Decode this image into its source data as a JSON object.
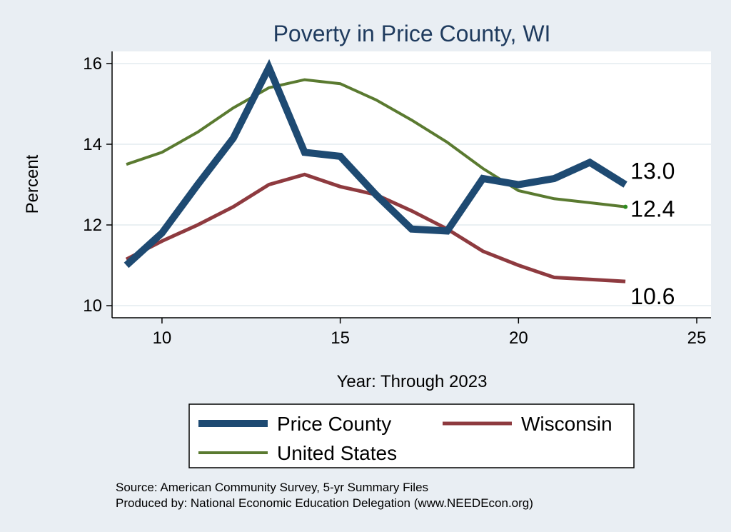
{
  "chart_data": {
    "type": "line",
    "title": "Poverty in Price County, WI",
    "xlabel": "Year: Through 2023",
    "ylabel": "Percent",
    "xlim": [
      8.6,
      25.4
    ],
    "ylim": [
      9.7,
      16.3
    ],
    "xticks": [
      10,
      15,
      20,
      25
    ],
    "yticks": [
      10,
      12,
      14,
      16
    ],
    "grid": true,
    "legend_position": "bottom",
    "series": [
      {
        "name": "Price County",
        "color": "#1e4a72",
        "width": "thick",
        "x": [
          9,
          10,
          11,
          12,
          13,
          14,
          15,
          16,
          17,
          18,
          19,
          20,
          21,
          22,
          23
        ],
        "y": [
          11.0,
          11.8,
          13.0,
          14.15,
          15.9,
          13.8,
          13.7,
          12.75,
          11.9,
          11.85,
          13.15,
          13.0,
          13.15,
          13.55,
          13.0
        ],
        "end_label": "13.0"
      },
      {
        "name": "Wisconsin",
        "color": "#8e3a3f",
        "width": "medium",
        "x": [
          9,
          10,
          11,
          12,
          13,
          14,
          15,
          16,
          17,
          18,
          19,
          20,
          21,
          22,
          23
        ],
        "y": [
          11.15,
          11.6,
          12.0,
          12.45,
          13.0,
          13.25,
          12.95,
          12.75,
          12.35,
          11.9,
          11.35,
          11.0,
          10.7,
          10.65,
          10.6
        ],
        "end_label": "10.6"
      },
      {
        "name": "United States",
        "color": "#5a7a30",
        "width": "thin",
        "x": [
          9,
          10,
          11,
          12,
          13,
          14,
          15,
          16,
          17,
          18,
          19,
          20,
          21,
          22,
          23
        ],
        "y": [
          13.5,
          13.8,
          14.3,
          14.9,
          15.4,
          15.6,
          15.5,
          15.1,
          14.6,
          14.05,
          13.4,
          12.85,
          12.65,
          12.55,
          12.45
        ],
        "end_label": "12.4"
      }
    ],
    "notes": [
      "Source: American Community Survey, 5-yr Summary Files",
      "Produced by: National Economic Education Delegation (www.NEEDEcon.org)"
    ]
  }
}
